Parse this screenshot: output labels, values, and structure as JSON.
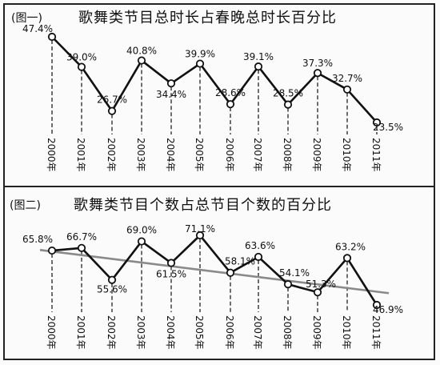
{
  "chart_data": [
    {
      "type": "line",
      "tag": "(图一)",
      "title": "歌舞类节目总时长占春晚总时长百分比",
      "categories": [
        "2000年",
        "2001年",
        "2002年",
        "2003年",
        "2004年",
        "2005年",
        "2006年",
        "2007年",
        "2008年",
        "2009年",
        "2010年",
        "2011年"
      ],
      "series": [
        {
          "values": [
            47.4,
            39.0,
            26.7,
            40.8,
            34.4,
            39.9,
            28.6,
            39.1,
            28.5,
            37.3,
            32.7,
            23.5
          ]
        }
      ],
      "labels": [
        "47.4%",
        "39.0%",
        "26.7%",
        "40.8%",
        "34.4%",
        "39.9%",
        "28.6%",
        "39.1%",
        "28.5%",
        "37.3%",
        "32.7%",
        "23.5%"
      ],
      "grid": false,
      "legend": "none"
    },
    {
      "type": "line",
      "tag": "(图二)",
      "title": "歌舞类节目个数占总节目个数的百分比",
      "categories": [
        "2000年",
        "2001年",
        "2002年",
        "2003年",
        "2004年",
        "2005年",
        "2006年",
        "2007年",
        "2008年",
        "2009年",
        "2010年",
        "2011年"
      ],
      "series": [
        {
          "values": [
            65.8,
            66.7,
            55.6,
            69.0,
            61.5,
            71.1,
            58.1,
            63.6,
            54.1,
            51.3,
            63.2,
            46.9
          ]
        }
      ],
      "trendline": {
        "start": 66.0,
        "end": 51.0
      },
      "labels": [
        "65.8%",
        "66.7%",
        "55.6%",
        "69.0%",
        "61.5%",
        "71.1%",
        "58.1%",
        "63.6%",
        "54.1%",
        "51.3%",
        "63.2%",
        "46.9%"
      ],
      "grid": false,
      "legend": "none"
    }
  ]
}
